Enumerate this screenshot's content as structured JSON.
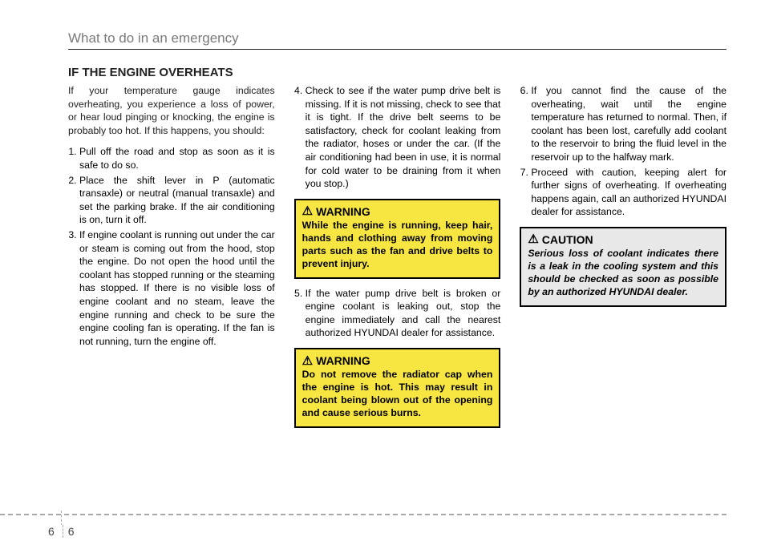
{
  "chapter": "What to do in an emergency",
  "section_title": "IF THE ENGINE OVERHEATS",
  "intro": "If your temperature gauge indicates overheating, you experience a loss of power, or hear loud pinging or knocking, the engine is probably too hot. If this happens, you should:",
  "steps_col1": {
    "1": "Pull off the road and stop as soon as it is safe to do so.",
    "2": "Place the shift lever in P (automatic transaxle) or neutral (manual transaxle) and set the parking brake. If the air conditioning is on, turn it off.",
    "3": "If engine coolant is running out under the car or steam is coming out from the hood, stop the engine. Do not open the hood until the coolant has stopped running or the steaming has stopped. If there is no visible loss of engine coolant and no steam, leave the engine running and check to be sure the engine cooling fan is operating. If the fan is not running, turn the engine off."
  },
  "steps_col2": {
    "4": "Check to see if the water pump drive belt is missing. If it is not missing, check to see that it is tight. If the drive belt seems to be satisfactory, check for coolant leaking from the radiator, hoses or under the car. (If the air conditioning had been in use, it is normal for cold water to be draining from it when you stop.)",
    "5": "If the water pump drive belt is broken or engine coolant is leaking out, stop the engine immediately and call the nearest authorized HYUNDAI dealer for assistance."
  },
  "steps_col3": {
    "6": "If you cannot find the cause of the overheating, wait until the engine temperature has returned to normal. Then, if coolant has been lost, carefully add coolant to the reservoir to bring the fluid level in the reservoir up to the halfway mark.",
    "7": "Proceed with caution, keeping alert for further signs of overheating. If overheating happens again, call an authorized HYUNDAI dealer for assistance."
  },
  "warning1": {
    "label": "WARNING",
    "text": "While the engine is running, keep hair, hands and clothing away from moving parts such as the fan and drive belts to prevent injury."
  },
  "warning2": {
    "label": "WARNING",
    "text": "Do not remove the radiator cap when the engine is hot. This may result in coolant being blown out of the opening and cause serious burns."
  },
  "caution": {
    "label": "CAUTION",
    "text": "Serious loss of coolant indicates there is a leak in the cooling system and this should be checked as soon as possible by an authorized HYUNDAI dealer."
  },
  "page_left": "6",
  "page_right": "6"
}
